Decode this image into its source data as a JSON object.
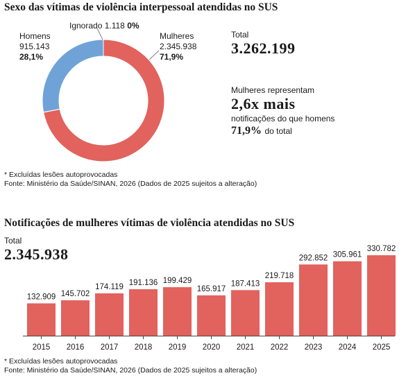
{
  "chart_data": [
    {
      "type": "pie",
      "title": "Sexo das vítimas de violência interpessoal atendidas no SUS",
      "slices": [
        {
          "name": "Mulheres",
          "value": 2345938,
          "value_label": "2.345.938",
          "pct_label": "71,9%",
          "color": "#e2625d"
        },
        {
          "name": "Ignorado",
          "value": 1118,
          "value_label": "1.118",
          "pct_label": "0%",
          "color": "#8a8a8a"
        },
        {
          "name": "Homens",
          "value": 915143,
          "value_label": "915.143",
          "pct_label": "28,1%",
          "color": "#6fa3d8"
        }
      ],
      "total_label": "Total",
      "total_value": "3.262.199",
      "insight": {
        "line1": "Mulheres representam",
        "big": "2,6x mais",
        "line2": "notificações do que homens",
        "pct": "71,9%",
        "pct_suffix": "do total"
      },
      "notes": [
        "* Excluídas lesões autoprovocadas",
        "Fonte: Ministério da Saúde/SINAN, 2026 (Dados de 2025 sujeitos a alteração)"
      ]
    },
    {
      "type": "bar",
      "title": "Notificações de mulheres vítimas de violência atendidas no SUS",
      "total_label": "Total",
      "total_value": "2.345.938",
      "categories": [
        "2015",
        "2016",
        "2017",
        "2018",
        "2019",
        "2020",
        "2021",
        "2022",
        "2023",
        "2024",
        "2025"
      ],
      "values": [
        132909,
        145702,
        174119,
        191136,
        199429,
        165917,
        187413,
        219718,
        292852,
        305961,
        330782
      ],
      "value_labels": [
        "132.909",
        "145.702",
        "174.119",
        "191.136",
        "199.429",
        "165.917",
        "187.413",
        "219.718",
        "292.852",
        "305.961",
        "330.782"
      ],
      "color": "#e2625d",
      "notes": [
        "* Excluídas lesões autoprovocadas",
        "Fonte: Ministério da Saúde/SINAN, 2026 (Dados de 2025 sujeitos a alteração)"
      ]
    }
  ]
}
